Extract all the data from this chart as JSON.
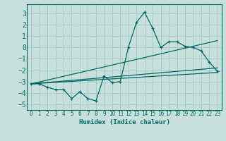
{
  "title": "",
  "xlabel": "Humidex (Indice chaleur)",
  "background_color": "#c8e0dc",
  "grid_color": "#a0c8c0",
  "line_color": "#006860",
  "xlim": [
    -0.5,
    23.5
  ],
  "ylim": [
    -5.5,
    3.8
  ],
  "xticks": [
    0,
    1,
    2,
    3,
    4,
    5,
    6,
    7,
    8,
    9,
    10,
    11,
    12,
    13,
    14,
    15,
    16,
    17,
    18,
    19,
    20,
    21,
    22,
    23
  ],
  "yticks": [
    -5,
    -4,
    -3,
    -2,
    -1,
    0,
    1,
    2,
    3
  ],
  "series1_x": [
    0,
    1,
    2,
    3,
    4,
    5,
    6,
    7,
    8,
    9,
    10,
    11,
    12,
    13,
    14,
    15,
    16,
    17,
    18,
    19,
    20,
    21,
    22,
    23
  ],
  "series1_y": [
    -3.2,
    -3.2,
    -3.5,
    -3.7,
    -3.7,
    -4.5,
    -3.9,
    -4.5,
    -4.7,
    -2.5,
    -3.1,
    -3.0,
    0.0,
    2.2,
    3.1,
    1.7,
    0.0,
    0.5,
    0.5,
    0.1,
    0.0,
    -0.3,
    -1.3,
    -2.1
  ],
  "line2_x": [
    0,
    23
  ],
  "line2_y": [
    -3.2,
    0.6
  ],
  "line3_x": [
    0,
    23
  ],
  "line3_y": [
    -3.2,
    -1.8
  ],
  "line4_x": [
    0,
    23
  ],
  "line4_y": [
    -3.2,
    -2.2
  ]
}
